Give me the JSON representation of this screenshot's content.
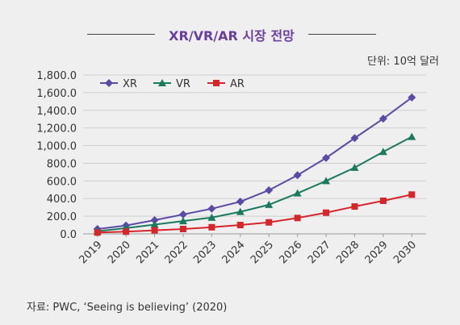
{
  "header": {
    "title": "XR/VR/AR 시장 전망",
    "unit": "단위: 10억 달러"
  },
  "footer": {
    "source": "자료: PWC, ‘Seeing is believing’ (2020)"
  },
  "chart_data": {
    "type": "line",
    "title": "XR/VR/AR 시장 전망",
    "xlabel": "",
    "ylabel": "",
    "categories": [
      "2019",
      "2020",
      "2021",
      "2022",
      "2023",
      "2024",
      "2025",
      "2026",
      "2027",
      "2028",
      "2029",
      "2030"
    ],
    "ylim": [
      0,
      1800
    ],
    "yticks": [
      "0.0",
      "200.0",
      "400.0",
      "600.0",
      "800.0",
      "1,000.0",
      "1,200.0",
      "1,400.0",
      "1,600.0",
      "1,800.0"
    ],
    "grid": true,
    "legend": "top-left",
    "series": [
      {
        "name": "XR",
        "color": "#5b4aa6",
        "marker": "diamond",
        "values": [
          55,
          95,
          155,
          220,
          285,
          365,
          495,
          665,
          860,
          1085,
          1305,
          1545
        ]
      },
      {
        "name": "VR",
        "color": "#1a7a5e",
        "marker": "triangle",
        "values": [
          30,
          65,
          105,
          145,
          185,
          250,
          330,
          460,
          600,
          750,
          930,
          1100
        ]
      },
      {
        "name": "AR",
        "color": "#d6262a",
        "marker": "square",
        "values": [
          15,
          25,
          40,
          55,
          75,
          100,
          130,
          180,
          240,
          310,
          375,
          445
        ]
      }
    ]
  }
}
